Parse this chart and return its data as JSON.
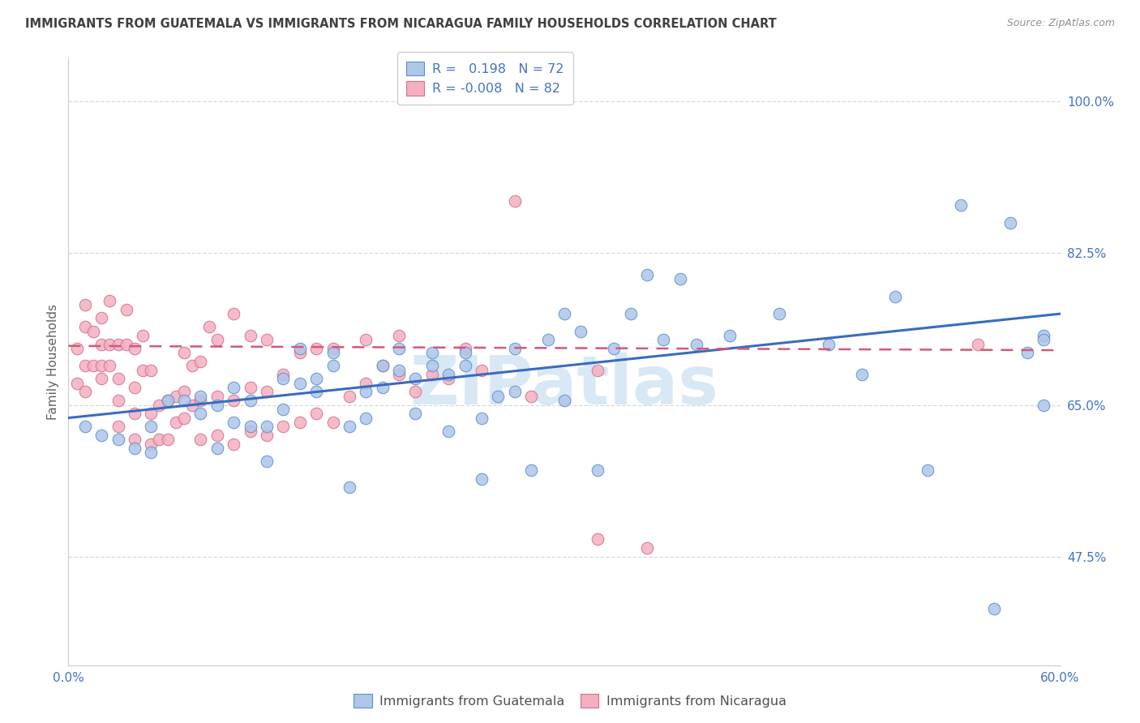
{
  "title": "IMMIGRANTS FROM GUATEMALA VS IMMIGRANTS FROM NICARAGUA FAMILY HOUSEHOLDS CORRELATION CHART",
  "source": "Source: ZipAtlas.com",
  "ylabel": "Family Households",
  "ytick_labels": [
    "100.0%",
    "82.5%",
    "65.0%",
    "47.5%"
  ],
  "ytick_values": [
    1.0,
    0.825,
    0.65,
    0.475
  ],
  "xlim": [
    0.0,
    0.6
  ],
  "ylim": [
    0.35,
    1.05
  ],
  "legend_blue_line1": "R =   0.198   N = 72",
  "legend_pink_line1": "R = -0.008   N = 82",
  "legend_label_blue": "Immigrants from Guatemala",
  "legend_label_pink": "Immigrants from Nicaragua",
  "blue_color": "#aec6e8",
  "pink_color": "#f4afc0",
  "blue_edge_color": "#5b8fd4",
  "pink_edge_color": "#d47090",
  "blue_line_color": "#3a6bbf",
  "pink_line_color": "#d45878",
  "title_color": "#404040",
  "tick_color": "#4472c4",
  "source_color": "#909090",
  "ylabel_color": "#606060",
  "legend_text_color": "#4472c4",
  "watermark_text": "ZIPatlas",
  "watermark_color": "#d8e8f5",
  "grid_color": "#d8d8d8",
  "background_color": "#ffffff",
  "blue_trend_x": [
    0.0,
    0.6
  ],
  "blue_trend_y": [
    0.635,
    0.755
  ],
  "pink_trend_x": [
    0.0,
    0.6
  ],
  "pink_trend_y": [
    0.718,
    0.713
  ],
  "blue_scatter_x": [
    0.01,
    0.02,
    0.03,
    0.04,
    0.05,
    0.05,
    0.06,
    0.07,
    0.08,
    0.08,
    0.09,
    0.09,
    0.1,
    0.1,
    0.11,
    0.11,
    0.12,
    0.12,
    0.13,
    0.13,
    0.14,
    0.14,
    0.15,
    0.15,
    0.16,
    0.16,
    0.17,
    0.17,
    0.18,
    0.18,
    0.19,
    0.19,
    0.2,
    0.2,
    0.21,
    0.21,
    0.22,
    0.22,
    0.23,
    0.23,
    0.24,
    0.24,
    0.25,
    0.25,
    0.26,
    0.27,
    0.27,
    0.28,
    0.29,
    0.3,
    0.3,
    0.31,
    0.32,
    0.33,
    0.34,
    0.35,
    0.36,
    0.37,
    0.38,
    0.4,
    0.43,
    0.46,
    0.48,
    0.5,
    0.52,
    0.54,
    0.56,
    0.57,
    0.58,
    0.59,
    0.59,
    0.59
  ],
  "blue_scatter_y": [
    0.625,
    0.615,
    0.61,
    0.6,
    0.595,
    0.625,
    0.655,
    0.655,
    0.64,
    0.66,
    0.6,
    0.65,
    0.63,
    0.67,
    0.625,
    0.655,
    0.585,
    0.625,
    0.645,
    0.68,
    0.675,
    0.715,
    0.665,
    0.68,
    0.695,
    0.71,
    0.555,
    0.625,
    0.635,
    0.665,
    0.67,
    0.695,
    0.69,
    0.715,
    0.64,
    0.68,
    0.695,
    0.71,
    0.62,
    0.685,
    0.695,
    0.71,
    0.565,
    0.635,
    0.66,
    0.665,
    0.715,
    0.575,
    0.725,
    0.655,
    0.755,
    0.735,
    0.575,
    0.715,
    0.755,
    0.8,
    0.725,
    0.795,
    0.72,
    0.73,
    0.755,
    0.72,
    0.685,
    0.775,
    0.575,
    0.88,
    0.415,
    0.86,
    0.71,
    0.65,
    0.73,
    0.725
  ],
  "pink_scatter_x": [
    0.005,
    0.005,
    0.01,
    0.01,
    0.01,
    0.01,
    0.015,
    0.015,
    0.02,
    0.02,
    0.02,
    0.02,
    0.025,
    0.025,
    0.025,
    0.03,
    0.03,
    0.03,
    0.03,
    0.035,
    0.035,
    0.04,
    0.04,
    0.04,
    0.04,
    0.045,
    0.045,
    0.05,
    0.05,
    0.05,
    0.055,
    0.055,
    0.06,
    0.06,
    0.065,
    0.065,
    0.07,
    0.07,
    0.07,
    0.075,
    0.075,
    0.08,
    0.08,
    0.08,
    0.085,
    0.09,
    0.09,
    0.09,
    0.1,
    0.1,
    0.1,
    0.11,
    0.11,
    0.11,
    0.12,
    0.12,
    0.12,
    0.13,
    0.13,
    0.14,
    0.14,
    0.15,
    0.15,
    0.16,
    0.16,
    0.17,
    0.18,
    0.18,
    0.19,
    0.2,
    0.2,
    0.21,
    0.22,
    0.23,
    0.24,
    0.25,
    0.27,
    0.28,
    0.32,
    0.32,
    0.35,
    0.55
  ],
  "pink_scatter_y": [
    0.675,
    0.715,
    0.665,
    0.695,
    0.74,
    0.765,
    0.695,
    0.735,
    0.68,
    0.695,
    0.72,
    0.75,
    0.695,
    0.72,
    0.77,
    0.625,
    0.655,
    0.68,
    0.72,
    0.72,
    0.76,
    0.61,
    0.64,
    0.67,
    0.715,
    0.69,
    0.73,
    0.605,
    0.64,
    0.69,
    0.61,
    0.65,
    0.61,
    0.655,
    0.63,
    0.66,
    0.635,
    0.665,
    0.71,
    0.65,
    0.695,
    0.61,
    0.655,
    0.7,
    0.74,
    0.615,
    0.66,
    0.725,
    0.605,
    0.655,
    0.755,
    0.62,
    0.67,
    0.73,
    0.615,
    0.665,
    0.725,
    0.625,
    0.685,
    0.63,
    0.71,
    0.64,
    0.715,
    0.63,
    0.715,
    0.66,
    0.675,
    0.725,
    0.695,
    0.685,
    0.73,
    0.665,
    0.685,
    0.68,
    0.715,
    0.69,
    0.885,
    0.66,
    0.69,
    0.495,
    0.485,
    0.72
  ]
}
